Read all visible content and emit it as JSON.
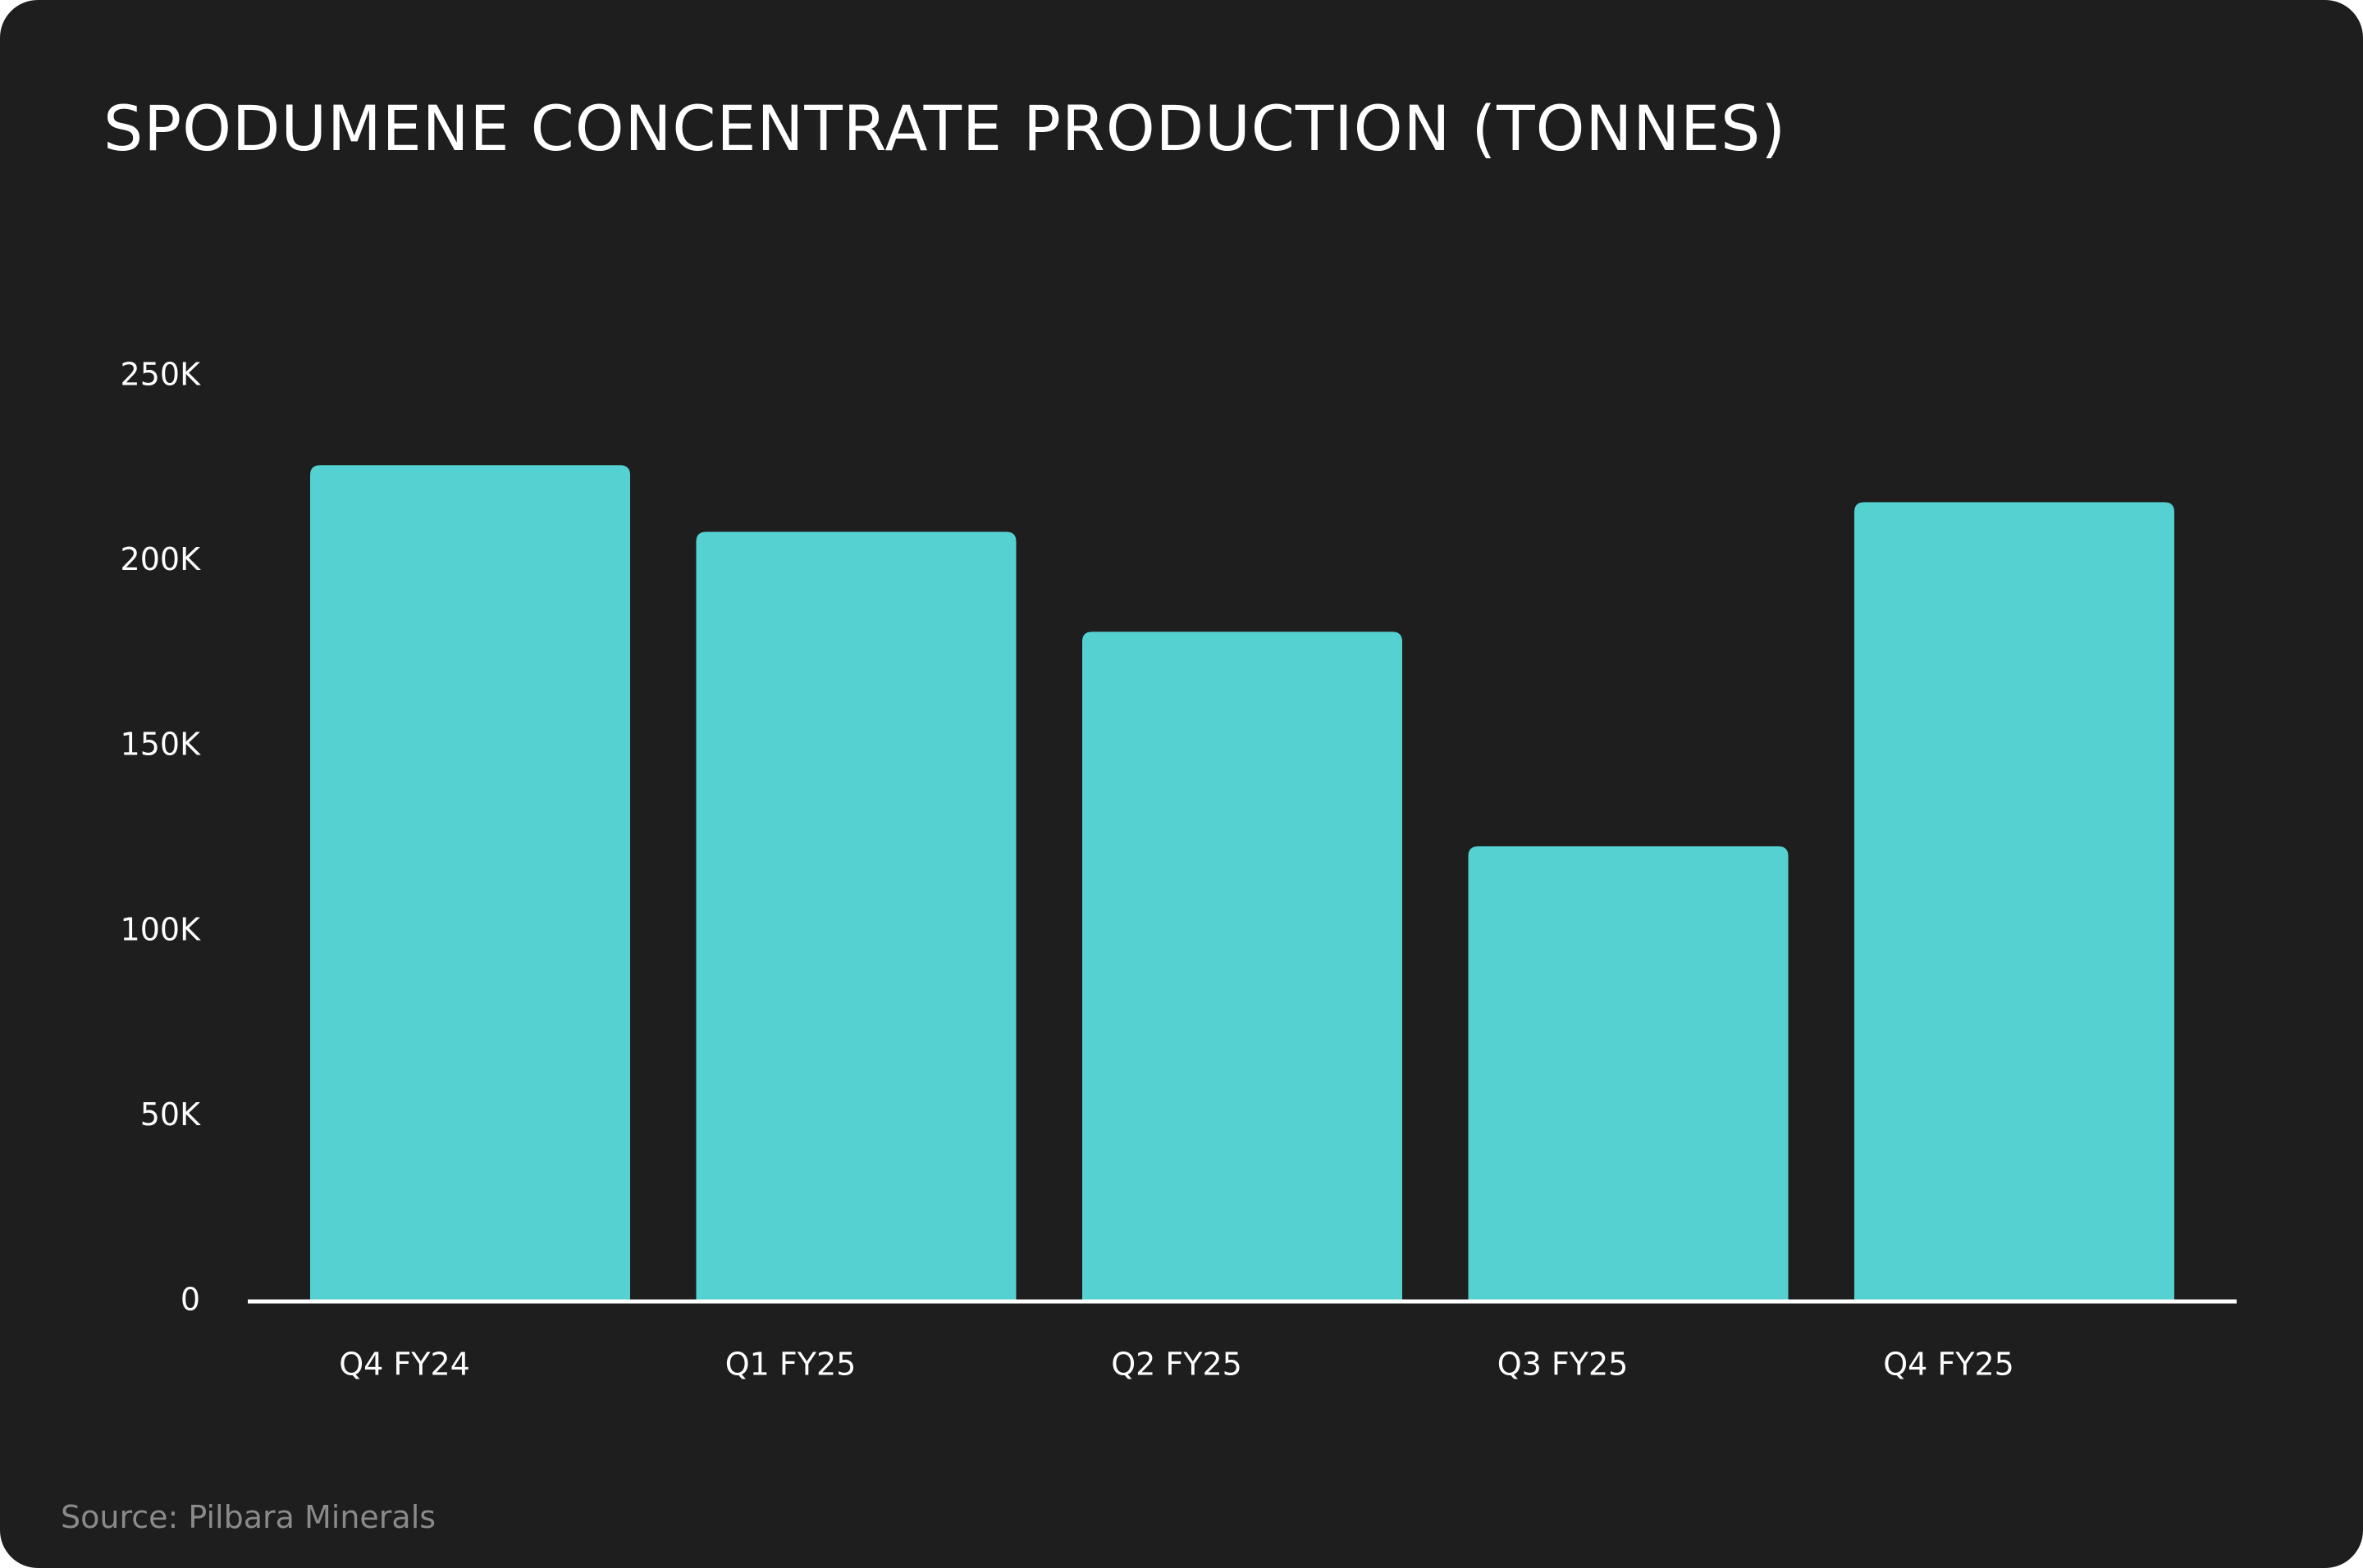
{
  "chart_data": {
    "type": "bar",
    "title": "SPODUMENE CONCENTRATE PRODUCTION (TONNES)",
    "categories": [
      "Q4 FY24",
      "Q1 FY25",
      "Q2 FY25",
      "Q3 FY25",
      "Q4 FY25"
    ],
    "values": [
      226000,
      208000,
      181000,
      123000,
      216000
    ],
    "ylim": [
      0,
      250000
    ],
    "yticks": [
      0,
      50000,
      100000,
      150000,
      200000,
      250000
    ],
    "ytick_labels": [
      "0",
      "50K",
      "100K",
      "150K",
      "200K",
      "250K"
    ],
    "xlabel": "",
    "ylabel": "",
    "grid": false,
    "legend": "none",
    "bar_color": "#55d1d1",
    "axis_color": "#ffffff",
    "background": "#1e1e1f"
  },
  "source": "Source: Pilbara Minerals"
}
